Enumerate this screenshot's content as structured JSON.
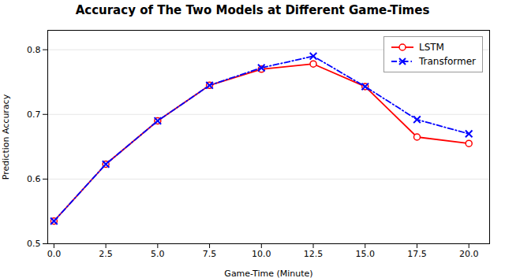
{
  "chart_data": {
    "type": "line",
    "title": "Accuracy of The Two Models at Different Game-Times",
    "xlabel": "Game-Time (Minute)",
    "ylabel": "Prediction Accuracy",
    "x": [
      0,
      2.5,
      5,
      7.5,
      10,
      12.5,
      15,
      17.5,
      20
    ],
    "series": [
      {
        "name": "LSTM",
        "color": "red",
        "marker": "circle",
        "line_style": "solid",
        "values": [
          0.535,
          0.623,
          0.69,
          0.745,
          0.77,
          0.778,
          0.743,
          0.665,
          0.655
        ]
      },
      {
        "name": "Transformer",
        "color": "blue",
        "marker": "x",
        "line_style": "dashdot",
        "values": [
          0.535,
          0.623,
          0.69,
          0.745,
          0.772,
          0.79,
          0.743,
          0.692,
          0.67
        ]
      }
    ],
    "xlim": [
      -0.3,
      21.0
    ],
    "ylim": [
      0.5,
      0.83
    ],
    "xticks": [
      {
        "value": 0,
        "label": "0.0"
      },
      2.5,
      {
        "value": 5,
        "label": "5.0"
      },
      7.5,
      {
        "value": 10,
        "label": "10.0"
      },
      12.5,
      {
        "value": 15,
        "label": "15.0"
      },
      17.5,
      {
        "value": 20,
        "label": "20.0"
      }
    ],
    "yticks": [
      0.5,
      0.6,
      0.7,
      0.8
    ],
    "grid": true,
    "legend": "upper right"
  }
}
